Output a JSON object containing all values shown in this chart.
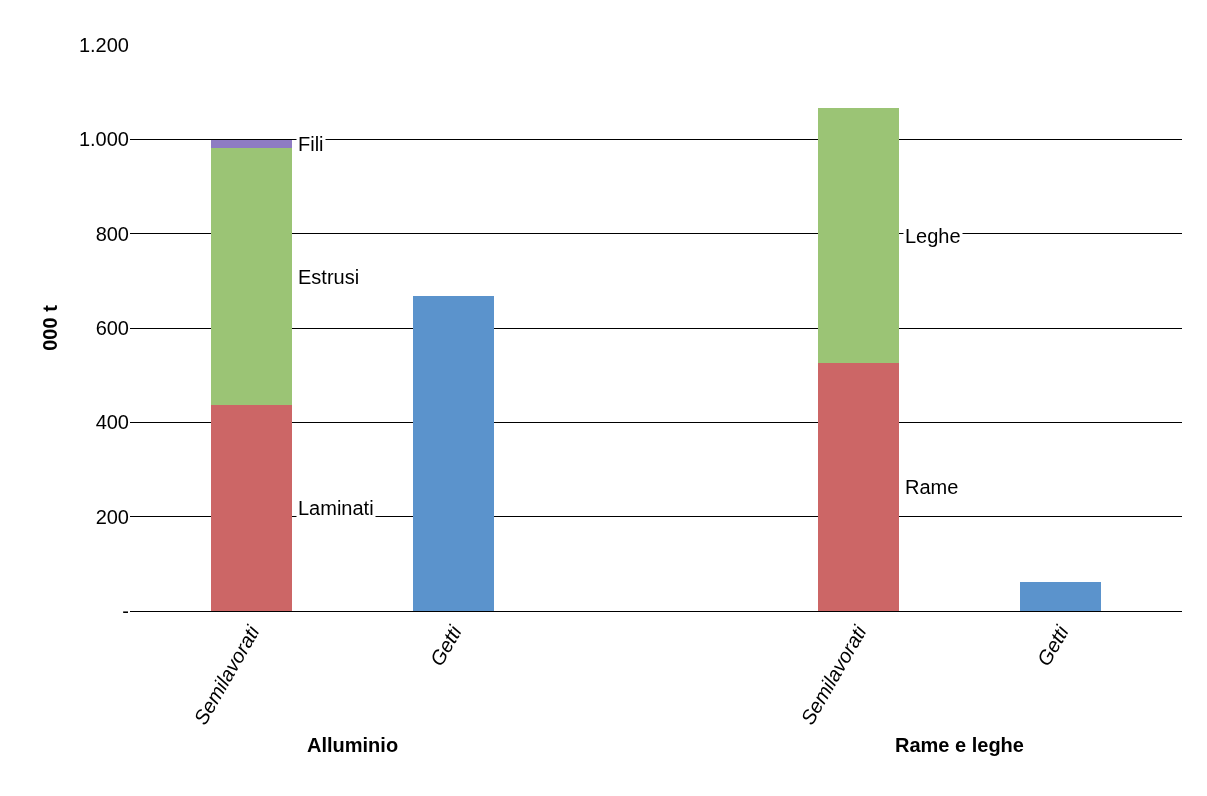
{
  "chart_data": {
    "type": "bar",
    "stacked": true,
    "ylabel": "000 t",
    "categories": [
      "Semilavorati",
      "Getti",
      null,
      "Semilavorati",
      "Getti"
    ],
    "series": [
      {
        "name": "Laminati",
        "color": "#cc6666",
        "values": [
          437,
          null,
          null,
          null,
          null
        ]
      },
      {
        "name": "Estrusi",
        "color": "#9bc475",
        "values": [
          544,
          null,
          null,
          null,
          null
        ]
      },
      {
        "name": "Fili",
        "color": "#8e7cc3",
        "values": [
          17,
          null,
          null,
          null,
          null
        ]
      },
      {
        "color": "#5b93cc",
        "values": [
          null,
          667,
          null,
          null,
          62
        ]
      },
      {
        "name": "Rame",
        "color": "#cc6666",
        "values": [
          null,
          null,
          null,
          525,
          null
        ]
      },
      {
        "name": "Leghe",
        "color": "#9bc475",
        "values": [
          null,
          null,
          null,
          541,
          null
        ]
      }
    ],
    "ylim": [
      0,
      1200
    ],
    "yticks": [
      {
        "value": 0,
        "label": "-"
      },
      200,
      400,
      600,
      800,
      {
        "value": 1000,
        "label": "1.000"
      },
      {
        "value": 1200,
        "label": "1.200"
      }
    ],
    "grid": "y",
    "annotations": [
      "Alluminio",
      "Rame e leghe"
    ]
  }
}
